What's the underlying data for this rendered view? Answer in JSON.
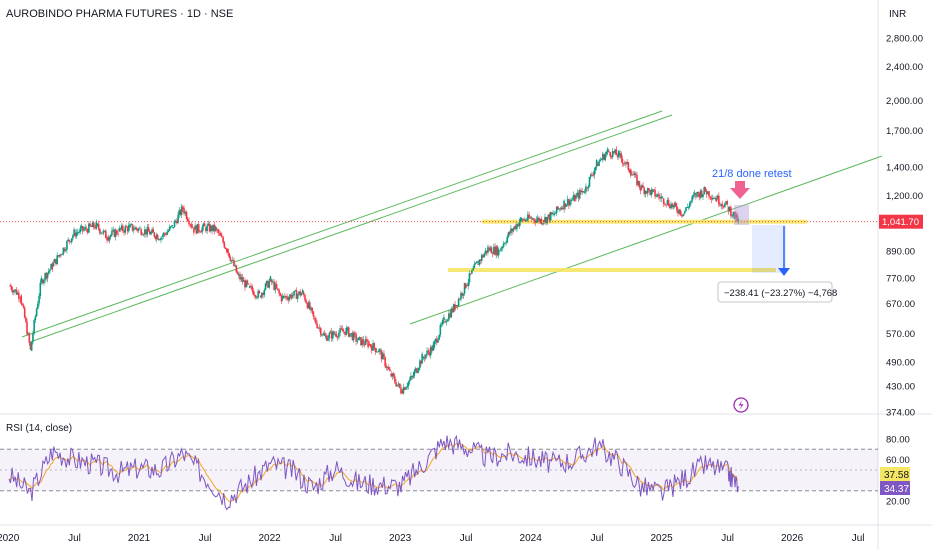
{
  "header": {
    "title": "AUROBINDO PHARMA FUTURES · 1D · NSE",
    "currency": "INR"
  },
  "colors": {
    "up": "#089981",
    "down": "#f23645",
    "channel": "#5cb85c",
    "support": "#f5e663",
    "rsi": "#7e57c2",
    "rsi_ma": "#f5a623",
    "price_label": "#f23645",
    "annotation": "#2962ff",
    "arrow_marker": "#f06292"
  },
  "annotation": {
    "retest_text": "21/8 done retest",
    "measure_text": "−238.41 (−23.27%) −4,768"
  },
  "price_axis": {
    "ticks": [
      "2,800.00",
      "2,400.00",
      "2,000.00",
      "1,700.00",
      "1,400.00",
      "1,200.00",
      "1,041.70",
      "890.00",
      "770.00",
      "670.00",
      "570.00",
      "490.00",
      "430.00",
      "374.00"
    ],
    "current_price": "1,041.70"
  },
  "rsi_panel": {
    "label": "RSI (14, close)",
    "ticks": [
      "80.00",
      "60.00",
      "20.00"
    ],
    "value_rsi": "34.37",
    "value_ma": "37.58"
  },
  "time_axis": {
    "labels": [
      "2020",
      "Jul",
      "2021",
      "Jul",
      "2022",
      "Jul",
      "2023",
      "Jul",
      "2024",
      "Jul",
      "2025",
      "Jul",
      "2026",
      "Jul"
    ]
  },
  "chart_data": {
    "type": "line",
    "series": [
      {
        "values": [
          {
            "date": "2020-01",
            "price": 740
          },
          {
            "date": "2020-02",
            "price": 700
          },
          {
            "date": "2020-03",
            "price": 520
          },
          {
            "date": "2020-04",
            "price": 760
          },
          {
            "date": "2020-05",
            "price": 820
          },
          {
            "date": "2020-06",
            "price": 900
          },
          {
            "date": "2020-07",
            "price": 980
          },
          {
            "date": "2020-08",
            "price": 1000
          },
          {
            "date": "2020-09",
            "price": 1020
          },
          {
            "date": "2020-10",
            "price": 960
          },
          {
            "date": "2020-11",
            "price": 990
          },
          {
            "date": "2020-12",
            "price": 1010
          },
          {
            "date": "2021-01",
            "price": 1000
          },
          {
            "date": "2021-02",
            "price": 980
          },
          {
            "date": "2021-03",
            "price": 960
          },
          {
            "date": "2021-04",
            "price": 1010
          },
          {
            "date": "2021-05",
            "price": 1120
          },
          {
            "date": "2021-06",
            "price": 1000
          },
          {
            "date": "2021-07",
            "price": 1010
          },
          {
            "date": "2021-08",
            "price": 1000
          },
          {
            "date": "2021-09",
            "price": 900
          },
          {
            "date": "2021-10",
            "price": 780
          },
          {
            "date": "2021-11",
            "price": 730
          },
          {
            "date": "2021-12",
            "price": 700
          },
          {
            "date": "2022-01",
            "price": 760
          },
          {
            "date": "2022-02",
            "price": 690
          },
          {
            "date": "2022-03",
            "price": 700
          },
          {
            "date": "2022-04",
            "price": 710
          },
          {
            "date": "2022-05",
            "price": 620
          },
          {
            "date": "2022-06",
            "price": 560
          },
          {
            "date": "2022-07",
            "price": 570
          },
          {
            "date": "2022-08",
            "price": 580
          },
          {
            "date": "2022-09",
            "price": 550
          },
          {
            "date": "2022-10",
            "price": 540
          },
          {
            "date": "2022-11",
            "price": 520
          },
          {
            "date": "2022-12",
            "price": 460
          },
          {
            "date": "2023-01",
            "price": 420
          },
          {
            "date": "2023-02",
            "price": 450
          },
          {
            "date": "2023-03",
            "price": 500
          },
          {
            "date": "2023-04",
            "price": 530
          },
          {
            "date": "2023-05",
            "price": 610
          },
          {
            "date": "2023-06",
            "price": 660
          },
          {
            "date": "2023-07",
            "price": 740
          },
          {
            "date": "2023-08",
            "price": 830
          },
          {
            "date": "2023-09",
            "price": 900
          },
          {
            "date": "2023-10",
            "price": 890
          },
          {
            "date": "2023-11",
            "price": 980
          },
          {
            "date": "2023-12",
            "price": 1050
          },
          {
            "date": "2024-01",
            "price": 1060
          },
          {
            "date": "2024-02",
            "price": 1050
          },
          {
            "date": "2024-03",
            "price": 1080
          },
          {
            "date": "2024-04",
            "price": 1150
          },
          {
            "date": "2024-05",
            "price": 1180
          },
          {
            "date": "2024-06",
            "price": 1250
          },
          {
            "date": "2024-07",
            "price": 1420
          },
          {
            "date": "2024-08",
            "price": 1520
          },
          {
            "date": "2024-09",
            "price": 1490
          },
          {
            "date": "2024-10",
            "price": 1380
          },
          {
            "date": "2024-11",
            "price": 1250
          },
          {
            "date": "2024-12",
            "price": 1220
          },
          {
            "date": "2025-01",
            "price": 1180
          },
          {
            "date": "2025-02",
            "price": 1130
          },
          {
            "date": "2025-03",
            "price": 1090
          },
          {
            "date": "2025-04",
            "price": 1200
          },
          {
            "date": "2025-05",
            "price": 1230
          },
          {
            "date": "2025-06",
            "price": 1180
          },
          {
            "date": "2025-07",
            "price": 1130
          },
          {
            "date": "2025-08",
            "price": 1041.7
          }
        ]
      }
    ],
    "ylim": [
      374,
      3000
    ],
    "yscale": "log",
    "support_levels": [
      1041.7,
      803.29
    ],
    "rsi": {
      "ylim": [
        0,
        100
      ],
      "band": [
        30,
        70
      ],
      "mid": 50,
      "values": [
        {
          "date": "2020-01",
          "value": 45
        },
        {
          "date": "2020-03",
          "value": 28
        },
        {
          "date": "2020-05",
          "value": 68
        },
        {
          "date": "2020-07",
          "value": 60
        },
        {
          "date": "2020-09",
          "value": 55
        },
        {
          "date": "2020-11",
          "value": 48
        },
        {
          "date": "2021-01",
          "value": 52
        },
        {
          "date": "2021-03",
          "value": 50
        },
        {
          "date": "2021-05",
          "value": 66
        },
        {
          "date": "2021-07",
          "value": 44
        },
        {
          "date": "2021-09",
          "value": 22
        },
        {
          "date": "2021-11",
          "value": 38
        },
        {
          "date": "2022-01",
          "value": 56
        },
        {
          "date": "2022-03",
          "value": 50
        },
        {
          "date": "2022-05",
          "value": 33
        },
        {
          "date": "2022-07",
          "value": 52
        },
        {
          "date": "2022-09",
          "value": 38
        },
        {
          "date": "2022-11",
          "value": 36
        },
        {
          "date": "2023-01",
          "value": 35
        },
        {
          "date": "2023-03",
          "value": 55
        },
        {
          "date": "2023-05",
          "value": 78
        },
        {
          "date": "2023-07",
          "value": 72
        },
        {
          "date": "2023-09",
          "value": 62
        },
        {
          "date": "2023-11",
          "value": 66
        },
        {
          "date": "2024-01",
          "value": 62
        },
        {
          "date": "2024-03",
          "value": 56
        },
        {
          "date": "2024-05",
          "value": 60
        },
        {
          "date": "2024-07",
          "value": 74
        },
        {
          "date": "2024-09",
          "value": 58
        },
        {
          "date": "2024-11",
          "value": 34
        },
        {
          "date": "2025-01",
          "value": 28
        },
        {
          "date": "2025-03",
          "value": 42
        },
        {
          "date": "2025-05",
          "value": 55
        },
        {
          "date": "2025-07",
          "value": 48
        },
        {
          "date": "2025-08",
          "value": 34.37
        }
      ]
    }
  }
}
